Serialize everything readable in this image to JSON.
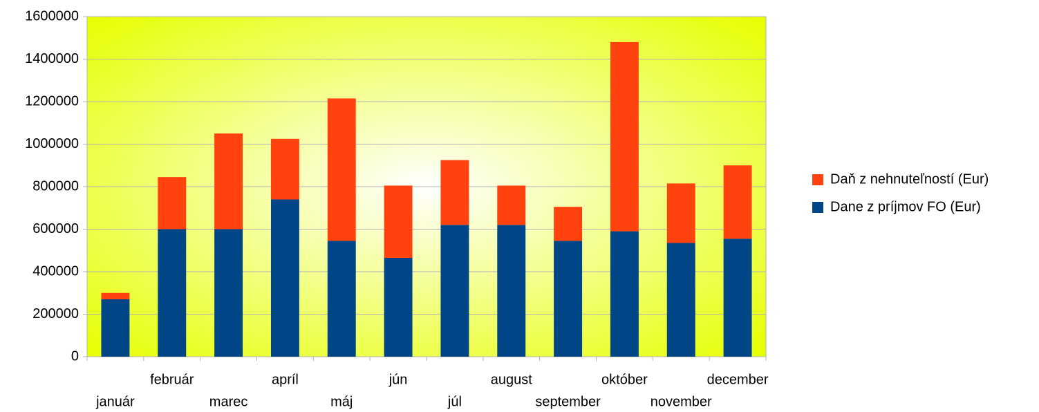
{
  "chart_data": {
    "type": "stacked_bar",
    "categories": [
      "január",
      "február",
      "marec",
      "apríl",
      "máj",
      "jún",
      "júl",
      "august",
      "september",
      "október",
      "november",
      "december"
    ],
    "series": [
      {
        "name": "Dane z príjmov FO (Eur)",
        "color": "#004586",
        "values": [
          270000,
          600000,
          600000,
          740000,
          545000,
          465000,
          620000,
          620000,
          545000,
          590000,
          535000,
          555000
        ]
      },
      {
        "name": "Daň z nehnuteľností (Eur)",
        "color": "#ff420e",
        "values": [
          30000,
          245000,
          450000,
          285000,
          670000,
          340000,
          305000,
          185000,
          160000,
          890000,
          280000,
          345000
        ]
      }
    ],
    "ylim": [
      0,
      1600000
    ],
    "yticks": [
      0,
      200000,
      400000,
      600000,
      800000,
      1000000,
      1200000,
      1400000,
      1600000
    ],
    "grid": true,
    "legend": "right"
  }
}
